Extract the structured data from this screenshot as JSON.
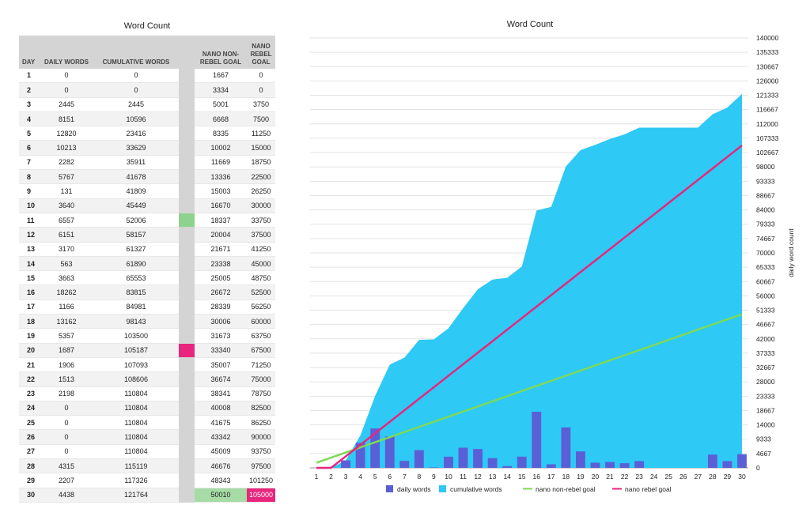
{
  "table": {
    "title": "Word Count",
    "headers": {
      "day": "DAY",
      "daily": "DAILY WORDS",
      "cumulative": "CUMULATIVE WORDS",
      "nonrebel": "NANO NON-REBEL GOAL",
      "rebel": "NANO REBEL GOAL"
    },
    "rows": [
      {
        "day": "1",
        "daily": "0",
        "cumulative": "0",
        "nonrebel": "1667",
        "rebel": "0"
      },
      {
        "day": "2",
        "daily": "0",
        "cumulative": "0",
        "nonrebel": "3334",
        "rebel": "0"
      },
      {
        "day": "3",
        "daily": "2445",
        "cumulative": "2445",
        "nonrebel": "5001",
        "rebel": "3750"
      },
      {
        "day": "4",
        "daily": "8151",
        "cumulative": "10596",
        "nonrebel": "6668",
        "rebel": "7500"
      },
      {
        "day": "5",
        "daily": "12820",
        "cumulative": "23416",
        "nonrebel": "8335",
        "rebel": "11250"
      },
      {
        "day": "6",
        "daily": "10213",
        "cumulative": "33629",
        "nonrebel": "10002",
        "rebel": "15000"
      },
      {
        "day": "7",
        "daily": "2282",
        "cumulative": "35911",
        "nonrebel": "11669",
        "rebel": "18750"
      },
      {
        "day": "8",
        "daily": "5767",
        "cumulative": "41678",
        "nonrebel": "13336",
        "rebel": "22500"
      },
      {
        "day": "9",
        "daily": "131",
        "cumulative": "41809",
        "nonrebel": "15003",
        "rebel": "26250"
      },
      {
        "day": "10",
        "daily": "3640",
        "cumulative": "45449",
        "nonrebel": "16670",
        "rebel": "30000"
      },
      {
        "day": "11",
        "daily": "6557",
        "cumulative": "52006",
        "nonrebel": "18337",
        "rebel": "33750"
      },
      {
        "day": "12",
        "daily": "6151",
        "cumulative": "58157",
        "nonrebel": "20004",
        "rebel": "37500"
      },
      {
        "day": "13",
        "daily": "3170",
        "cumulative": "61327",
        "nonrebel": "21671",
        "rebel": "41250"
      },
      {
        "day": "14",
        "daily": "563",
        "cumulative": "61890",
        "nonrebel": "23338",
        "rebel": "45000"
      },
      {
        "day": "15",
        "daily": "3663",
        "cumulative": "65553",
        "nonrebel": "25005",
        "rebel": "48750"
      },
      {
        "day": "16",
        "daily": "18262",
        "cumulative": "83815",
        "nonrebel": "26672",
        "rebel": "52500"
      },
      {
        "day": "17",
        "daily": "1166",
        "cumulative": "84981",
        "nonrebel": "28339",
        "rebel": "56250"
      },
      {
        "day": "18",
        "daily": "13162",
        "cumulative": "98143",
        "nonrebel": "30006",
        "rebel": "60000"
      },
      {
        "day": "19",
        "daily": "5357",
        "cumulative": "103500",
        "nonrebel": "31673",
        "rebel": "63750"
      },
      {
        "day": "20",
        "daily": "1687",
        "cumulative": "105187",
        "nonrebel": "33340",
        "rebel": "67500"
      },
      {
        "day": "21",
        "daily": "1906",
        "cumulative": "107093",
        "nonrebel": "35007",
        "rebel": "71250"
      },
      {
        "day": "22",
        "daily": "1513",
        "cumulative": "108606",
        "nonrebel": "36674",
        "rebel": "75000"
      },
      {
        "day": "23",
        "daily": "2198",
        "cumulative": "110804",
        "nonrebel": "38341",
        "rebel": "78750"
      },
      {
        "day": "24",
        "daily": "0",
        "cumulative": "110804",
        "nonrebel": "40008",
        "rebel": "82500"
      },
      {
        "day": "25",
        "daily": "0",
        "cumulative": "110804",
        "nonrebel": "41675",
        "rebel": "86250"
      },
      {
        "day": "26",
        "daily": "0",
        "cumulative": "110804",
        "nonrebel": "43342",
        "rebel": "90000"
      },
      {
        "day": "27",
        "daily": "0",
        "cumulative": "110804",
        "nonrebel": "45009",
        "rebel": "93750"
      },
      {
        "day": "28",
        "daily": "4315",
        "cumulative": "115119",
        "nonrebel": "46676",
        "rebel": "97500"
      },
      {
        "day": "29",
        "daily": "2207",
        "cumulative": "117326",
        "nonrebel": "48343",
        "rebel": "101250"
      },
      {
        "day": "30",
        "daily": "4438",
        "cumulative": "121764",
        "nonrebel": "50010",
        "rebel": "105000"
      }
    ],
    "markers": {
      "nonrebel_reached_day": 11,
      "rebel_reached_day": 20
    },
    "highlight_colors": {
      "nonrebel": "#8fd28f",
      "rebel": "#e8267d"
    }
  },
  "chart_data": {
    "type": "bar",
    "title": "Word Count",
    "ylabel": "daily word count",
    "x": [
      1,
      2,
      3,
      4,
      5,
      6,
      7,
      8,
      9,
      10,
      11,
      12,
      13,
      14,
      15,
      16,
      17,
      18,
      19,
      20,
      21,
      22,
      23,
      24,
      25,
      26,
      27,
      28,
      29,
      30
    ],
    "ylim": [
      0,
      140000
    ],
    "yticks": [
      "0",
      "4667",
      "9333",
      "14000",
      "18667",
      "23333",
      "28000",
      "32667",
      "37333",
      "42000",
      "46667",
      "51333",
      "56000",
      "60667",
      "65333",
      "70000",
      "74667",
      "79333",
      "84000",
      "88667",
      "93333",
      "98000",
      "102667",
      "107333",
      "112000",
      "116667",
      "121333",
      "126000",
      "130667",
      "135333",
      "140000"
    ],
    "grid": true,
    "legend_position": "bottom",
    "series": [
      {
        "name": "daily words",
        "kind": "bar",
        "color": "#5b5fd6",
        "values": [
          0,
          0,
          2445,
          8151,
          12820,
          10213,
          2282,
          5767,
          131,
          3640,
          6557,
          6151,
          3170,
          563,
          3663,
          18262,
          1166,
          13162,
          5357,
          1687,
          1906,
          1513,
          2198,
          0,
          0,
          0,
          0,
          4315,
          2207,
          4438
        ]
      },
      {
        "name": "cumulative words",
        "kind": "area",
        "color": "#2ec9f5",
        "values": [
          0,
          0,
          2445,
          10596,
          23416,
          33629,
          35911,
          41678,
          41809,
          45449,
          52006,
          58157,
          61327,
          61890,
          65553,
          83815,
          84981,
          98143,
          103500,
          105187,
          107093,
          108606,
          110804,
          110804,
          110804,
          110804,
          110804,
          115119,
          117326,
          121764
        ]
      },
      {
        "name": "nano non-rebel goal",
        "kind": "line",
        "color": "#7ed957",
        "values": [
          1667,
          3334,
          5001,
          6668,
          8335,
          10002,
          11669,
          13336,
          15003,
          16670,
          18337,
          20004,
          21671,
          23338,
          25005,
          26672,
          28339,
          30006,
          31673,
          33340,
          35007,
          36674,
          38341,
          40008,
          41675,
          43342,
          45009,
          46676,
          48343,
          50010
        ]
      },
      {
        "name": "nano rebel goal",
        "kind": "line",
        "color": "#e8267d",
        "values": [
          0,
          0,
          3750,
          7500,
          11250,
          15000,
          18750,
          22500,
          26250,
          30000,
          33750,
          37500,
          41250,
          45000,
          48750,
          52500,
          56250,
          60000,
          63750,
          67500,
          71250,
          75000,
          78750,
          82500,
          86250,
          90000,
          93750,
          97500,
          101250,
          105000
        ]
      }
    ]
  }
}
